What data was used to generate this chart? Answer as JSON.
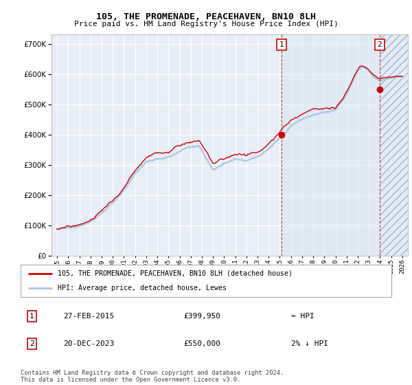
{
  "title": "105, THE PROMENADE, PEACEHAVEN, BN10 8LH",
  "subtitle": "Price paid vs. HM Land Registry's House Price Index (HPI)",
  "legend_line1": "105, THE PROMENADE, PEACEHAVEN, BN10 8LH (detached house)",
  "legend_line2": "HPI: Average price, detached house, Lewes",
  "annotation1_label": "1",
  "annotation1_date": "27-FEB-2015",
  "annotation1_price": "£399,950",
  "annotation1_hpi": "≈ HPI",
  "annotation2_label": "2",
  "annotation2_date": "20-DEC-2023",
  "annotation2_price": "£550,000",
  "annotation2_hpi": "2% ↓ HPI",
  "footer": "Contains HM Land Registry data © Crown copyright and database right 2024.\nThis data is licensed under the Open Government Licence v3.0.",
  "hpi_color": "#aac4e0",
  "price_color": "#cc0000",
  "annotation_color": "#cc0000",
  "background_color": "#e8eef7",
  "shade_color": "#dce8f5",
  "hatch_color": "#b8ccd8",
  "ylim": [
    0,
    730000
  ],
  "yticks": [
    0,
    100000,
    200000,
    300000,
    400000,
    500000,
    600000,
    700000
  ],
  "xlim_start": 1994.5,
  "xlim_end": 2026.5,
  "marker1_x": 2015.15,
  "marker1_y": 399950,
  "marker2_x": 2023.97,
  "marker2_y": 550000,
  "n_points": 372
}
